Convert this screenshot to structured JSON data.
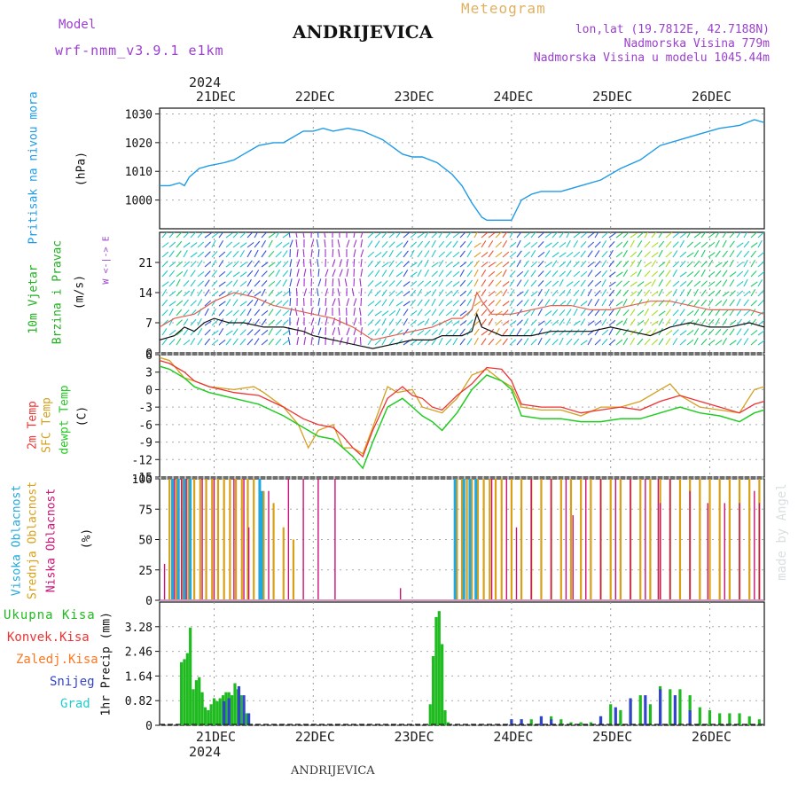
{
  "header": {
    "model_label": "Model",
    "model_name": "wrf-nmm_v3.9.1 e1km",
    "station": "ANDRIJEVICA",
    "meteogram": "Meteogram",
    "lonlat": "lon,lat (19.7812E, 42.7188N)",
    "altitude": "Nadmorska Visina 779m",
    "model_altitude": "Nadmorska Visina u modelu 1045.44m",
    "watermark": "made by Angel",
    "footer_station": "ANDRIJEVICA",
    "year_top": "2024",
    "year_bottom": "2024"
  },
  "colors": {
    "pressure": "#1e9be6",
    "wind_label": "#20b020",
    "temp2m": "#ee3333",
    "sfc": "#d4a020",
    "dewpt": "#20cc20",
    "high_cloud": "#20a8e0",
    "mid_cloud": "#d9a015",
    "low_cloud": "#cc1177",
    "total_precip": "#20bb20",
    "conv_precip": "#ee3333",
    "frz_precip": "#ff7722",
    "snow": "#3344cc",
    "graupel": "#22cccc",
    "purple": "#9b3fcf"
  },
  "chart_data": [
    {
      "type": "line",
      "panel": "pressure",
      "ylabel_1": "Pritisak na nivou mora",
      "ylabel_2": "(hPa)",
      "yticks": [
        "1000",
        "1010",
        "1020",
        "1030"
      ],
      "ylim": [
        990,
        1032
      ],
      "x_categories": [
        "21DEC",
        "22DEC",
        "23DEC",
        "24DEC",
        "25DEC",
        "26DEC"
      ],
      "xlim_days": [
        -0.55,
        5.55
      ],
      "series": [
        {
          "x": [
            -0.55,
            -0.45,
            -0.35,
            -0.3,
            -0.25,
            -0.15,
            -0.05,
            0.1,
            0.2,
            0.3,
            0.45,
            0.6,
            0.7,
            0.8,
            0.9,
            1.0,
            1.1,
            1.2,
            1.35,
            1.5,
            1.7,
            1.9,
            2.0,
            2.1,
            2.25,
            2.4,
            2.5,
            2.6,
            2.7,
            2.75,
            2.85,
            2.9,
            3.0,
            3.1,
            3.2,
            3.3,
            3.5,
            3.7,
            3.9,
            4.1,
            4.3,
            4.5,
            4.7,
            4.9,
            5.1,
            5.3,
            5.45,
            5.55
          ],
          "y": [
            1005,
            1005,
            1006,
            1005,
            1008,
            1011,
            1012,
            1013,
            1014,
            1016,
            1019,
            1020,
            1020,
            1022,
            1024,
            1024,
            1025,
            1024,
            1025,
            1024,
            1021,
            1016,
            1015,
            1015,
            1013,
            1009,
            1005,
            999,
            994,
            993,
            993,
            993,
            993,
            1000,
            1002,
            1003,
            1003,
            1005,
            1007,
            1011,
            1014,
            1019,
            1021,
            1023,
            1025,
            1026,
            1028,
            1027
          ]
        }
      ]
    },
    {
      "type": "line",
      "panel": "wind",
      "ylabel_1": "10m Vjetar",
      "ylabel_2": "Brzina i Pravac",
      "ylabel_3": "(m/s)",
      "compass": "W <-|-> E",
      "yticks": [
        "0",
        "7",
        "14",
        "21"
      ],
      "ylim": [
        0,
        28
      ],
      "series": [
        {
          "x": [
            -0.55,
            -0.4,
            -0.3,
            -0.2,
            -0.1,
            0.0,
            0.15,
            0.3,
            0.5,
            0.7,
            0.9,
            1.0,
            1.2,
            1.4,
            1.6,
            1.8,
            2.0,
            2.2,
            2.3,
            2.4,
            2.5,
            2.6,
            2.65,
            2.7,
            2.8,
            2.9,
            3.0,
            3.2,
            3.4,
            3.6,
            3.8,
            4.0,
            4.2,
            4.4,
            4.6,
            4.8,
            5.0,
            5.2,
            5.4,
            5.55
          ],
          "y": [
            3,
            4,
            6,
            5,
            7,
            8,
            7,
            7,
            6,
            6,
            5,
            4,
            3,
            2,
            1,
            2,
            3,
            3,
            4,
            4,
            4,
            5,
            9,
            6,
            5,
            4,
            4,
            4,
            5,
            5,
            5,
            6,
            5,
            4,
            6,
            7,
            6,
            6,
            7,
            6
          ]
        },
        {
          "x": [
            -0.55,
            -0.4,
            -0.2,
            0.0,
            0.2,
            0.4,
            0.6,
            0.8,
            1.0,
            1.2,
            1.4,
            1.6,
            1.8,
            2.0,
            2.2,
            2.3,
            2.4,
            2.5,
            2.6,
            2.65,
            2.7,
            2.8,
            3.0,
            3.2,
            3.4,
            3.6,
            3.8,
            4.0,
            4.2,
            4.4,
            4.6,
            4.8,
            5.0,
            5.2,
            5.4,
            5.55
          ],
          "y": [
            6,
            8,
            9,
            12,
            14,
            13,
            11,
            10,
            9,
            8,
            6,
            3,
            4,
            5,
            6,
            7,
            8,
            8,
            10,
            14,
            12,
            9,
            9,
            10,
            11,
            11,
            10,
            10,
            11,
            12,
            12,
            11,
            10,
            10,
            10,
            9
          ]
        }
      ]
    },
    {
      "type": "line",
      "panel": "temperature",
      "ylabel_1": "2m Temp",
      "ylabel_2": "SFC Temp",
      "ylabel_3": "dewpt Temp",
      "ylabel_4": "(C)",
      "yticks": [
        "-15",
        "-12",
        "-9",
        "-6",
        "-3",
        "0",
        "3",
        "6"
      ],
      "ylim": [
        -15,
        6
      ],
      "series": [
        {
          "name": "2m Temp",
          "x": [
            -0.55,
            -0.45,
            -0.3,
            -0.2,
            -0.05,
            0.2,
            0.45,
            0.7,
            0.9,
            1.05,
            1.2,
            1.3,
            1.4,
            1.5,
            1.6,
            1.75,
            1.9,
            2.0,
            2.1,
            2.2,
            2.3,
            2.45,
            2.6,
            2.75,
            2.9,
            3.0,
            3.1,
            3.3,
            3.5,
            3.7,
            3.9,
            4.1,
            4.3,
            4.5,
            4.7,
            4.9,
            5.1,
            5.3,
            5.45,
            5.55
          ],
          "y": [
            5,
            4.5,
            3,
            1.5,
            0.5,
            -0.5,
            -1,
            -3,
            -5,
            -6,
            -6.5,
            -8,
            -10,
            -11.5,
            -7,
            -1.5,
            0.5,
            -1,
            -1.5,
            -3,
            -3.5,
            -1,
            1,
            3.8,
            3.5,
            1.5,
            -2.5,
            -3,
            -3,
            -4,
            -3.5,
            -3,
            -3.5,
            -2,
            -1,
            -2,
            -3,
            -4,
            -2.5,
            -2
          ]
        },
        {
          "name": "SFC Temp",
          "x": [
            -0.55,
            -0.45,
            -0.3,
            -0.2,
            -0.05,
            0.2,
            0.4,
            0.5,
            0.7,
            0.85,
            0.95,
            1.05,
            1.2,
            1.3,
            1.4,
            1.5,
            1.6,
            1.75,
            1.85,
            2.0,
            2.1,
            2.2,
            2.3,
            2.45,
            2.6,
            2.75,
            2.9,
            3.0,
            3.1,
            3.3,
            3.5,
            3.7,
            3.9,
            4.1,
            4.3,
            4.5,
            4.6,
            4.7,
            4.9,
            5.1,
            5.3,
            5.45,
            5.55
          ],
          "y": [
            5.5,
            5,
            2,
            1.5,
            0.5,
            0,
            0.5,
            -0.5,
            -3,
            -6,
            -10,
            -7,
            -6,
            -10,
            -10,
            -11,
            -6.5,
            0.5,
            -0.5,
            0,
            -3,
            -3.5,
            -4,
            -1.5,
            2.5,
            3.5,
            1.5,
            0.5,
            -3,
            -3.5,
            -3.5,
            -4.5,
            -3,
            -3,
            -2,
            0,
            1,
            -1,
            -3,
            -3.5,
            -4,
            0,
            0.5
          ]
        },
        {
          "name": "dewpt Temp",
          "x": [
            -0.55,
            -0.45,
            -0.3,
            -0.2,
            -0.05,
            0.2,
            0.45,
            0.7,
            0.9,
            1.05,
            1.2,
            1.3,
            1.4,
            1.5,
            1.6,
            1.75,
            1.9,
            2.0,
            2.1,
            2.2,
            2.3,
            2.45,
            2.6,
            2.75,
            2.9,
            3.0,
            3.1,
            3.3,
            3.5,
            3.7,
            3.9,
            4.1,
            4.3,
            4.5,
            4.7,
            4.9,
            5.1,
            5.3,
            5.45,
            5.55
          ],
          "y": [
            4,
            3.5,
            2,
            0.5,
            -0.5,
            -1.5,
            -2.5,
            -4.5,
            -6.5,
            -8,
            -8.5,
            -10,
            -11.5,
            -13.5,
            -9,
            -3,
            -1.5,
            -3,
            -4.5,
            -5.5,
            -7,
            -4,
            0,
            2.5,
            1.5,
            0,
            -4.5,
            -5,
            -5,
            -5.5,
            -5.5,
            -5,
            -5,
            -4,
            -3,
            -4,
            -4.5,
            -5.5,
            -4,
            -3.5
          ]
        }
      ]
    },
    {
      "type": "bar",
      "panel": "clouds",
      "ylabel_1": "Visoka Oblacnost",
      "ylabel_2": "Srednja Oblacnost",
      "ylabel_3": "Niska Oblacnost",
      "ylabel_4": "(%)",
      "yticks": [
        "0",
        "25",
        "50",
        "75",
        "100"
      ],
      "ylim": [
        0,
        100
      ],
      "series": [
        {
          "name": "Srednja Oblacnost",
          "x": [
            -0.45,
            -0.38,
            -0.32,
            -0.26,
            -0.2,
            -0.14,
            -0.08,
            -0.02,
            0.04,
            0.1,
            0.16,
            0.22,
            0.28,
            0.34,
            0.4,
            0.5,
            0.6,
            0.7,
            0.8,
            2.45,
            2.5,
            2.55,
            2.6,
            2.66,
            2.72,
            2.78,
            2.84,
            2.9,
            3.0,
            3.1,
            3.2,
            3.3,
            3.4,
            3.5,
            3.6,
            3.7,
            3.8,
            3.9,
            4.0,
            4.1,
            4.2,
            4.3,
            4.4,
            4.5,
            4.6,
            4.7,
            4.8,
            4.9,
            5.0,
            5.1,
            5.2,
            5.3,
            5.4,
            5.5
          ],
          "values": [
            100,
            100,
            100,
            100,
            100,
            100,
            100,
            100,
            100,
            100,
            100,
            100,
            100,
            100,
            100,
            90,
            80,
            60,
            50,
            100,
            100,
            100,
            100,
            100,
            100,
            100,
            100,
            100,
            100,
            100,
            100,
            100,
            100,
            100,
            100,
            100,
            100,
            100,
            100,
            100,
            100,
            100,
            100,
            100,
            100,
            100,
            100,
            100,
            100,
            100,
            100,
            100,
            100,
            100
          ]
        },
        {
          "name": "Visoka Oblacnost",
          "x": [
            -0.42,
            -0.36,
            -0.3,
            -0.24,
            0.46,
            0.48,
            2.43,
            2.52,
            2.58,
            2.64
          ],
          "values": [
            100,
            100,
            100,
            100,
            100,
            90,
            100,
            100,
            100,
            100
          ]
        },
        {
          "name": "Niska Oblacnost",
          "x": [
            -0.5,
            -0.4,
            -0.33,
            -0.28,
            -0.12,
            0.0,
            0.2,
            0.3,
            0.35,
            0.55,
            0.75,
            0.9,
            1.05,
            1.22,
            1.88,
            2.8,
            2.95,
            3.05,
            3.2,
            3.4,
            3.55,
            3.62,
            3.75,
            3.9,
            4.05,
            4.2,
            4.35,
            4.48,
            4.5,
            4.6,
            4.8,
            4.98,
            5.15,
            5.3,
            5.45,
            5.5
          ],
          "values": [
            30,
            100,
            100,
            100,
            100,
            100,
            100,
            100,
            60,
            90,
            100,
            100,
            100,
            100,
            10,
            100,
            100,
            60,
            100,
            100,
            100,
            70,
            100,
            100,
            100,
            100,
            100,
            100,
            80,
            100,
            90,
            80,
            80,
            80,
            90,
            80
          ]
        }
      ]
    },
    {
      "type": "bar",
      "panel": "precipitation",
      "ylabel_1": "Ukupna Kisa",
      "ylabel_2": "Konvek.Kisa",
      "ylabel_3": "Zaledj.Kisa",
      "ylabel_4": "Snijeg",
      "ylabel_5": "Grad",
      "ylabel_6": "1hr Precip (mm)",
      "yticks": [
        "0",
        "0.82",
        "1.64",
        "2.46",
        "3.28"
      ],
      "ylim": [
        0,
        4.1
      ],
      "series": [
        {
          "name": "Ukupna Kisa",
          "x": [
            -0.33,
            -0.3,
            -0.27,
            -0.24,
            -0.21,
            -0.18,
            -0.15,
            -0.12,
            -0.09,
            -0.06,
            -0.03,
            0.0,
            0.03,
            0.06,
            0.09,
            0.12,
            0.15,
            0.18,
            0.21,
            0.24,
            0.27,
            0.3,
            0.33,
            0.36,
            0.39,
            0.42,
            0.45,
            0.48,
            2.18,
            2.21,
            2.24,
            2.27,
            2.3,
            2.33,
            2.36,
            2.39,
            3.0,
            3.1,
            3.2,
            3.3,
            3.4,
            3.5,
            3.6,
            3.7,
            3.8,
            3.9,
            4.0,
            4.1,
            4.2,
            4.3,
            4.4,
            4.5,
            4.6,
            4.7,
            4.8,
            4.9,
            5.0,
            5.1,
            5.2,
            5.3,
            5.4,
            5.5
          ],
          "values": [
            2.1,
            2.2,
            2.4,
            3.25,
            1.2,
            1.5,
            1.6,
            1.1,
            0.6,
            0.5,
            0.7,
            0.9,
            0.8,
            0.9,
            1.0,
            1.1,
            1.1,
            1.0,
            1.4,
            1.2,
            1.0,
            0.8,
            0.4,
            0,
            0,
            0,
            0,
            0,
            0.7,
            2.3,
            3.6,
            3.8,
            2.7,
            0.5,
            0.1,
            0,
            0.2,
            0.2,
            0.2,
            0.3,
            0.3,
            0.2,
            0.1,
            0.1,
            0.1,
            0.3,
            0.7,
            0.5,
            0.8,
            1.0,
            0.7,
            1.3,
            1.2,
            1.2,
            1.0,
            0.6,
            0.5,
            0.4,
            0.4,
            0.4,
            0.3,
            0.2
          ]
        },
        {
          "name": "Snijeg",
          "x": [
            0.1,
            0.15,
            0.25,
            0.3,
            0.35,
            3.0,
            3.1,
            3.3,
            3.4,
            3.9,
            4.05,
            4.2,
            4.35,
            4.5,
            4.65,
            4.8
          ],
          "values": [
            0.8,
            0.9,
            1.3,
            1.0,
            0.4,
            0.2,
            0.2,
            0.3,
            0.2,
            0.3,
            0.6,
            0.9,
            1.0,
            1.2,
            1.0,
            0.5
          ]
        }
      ]
    }
  ]
}
